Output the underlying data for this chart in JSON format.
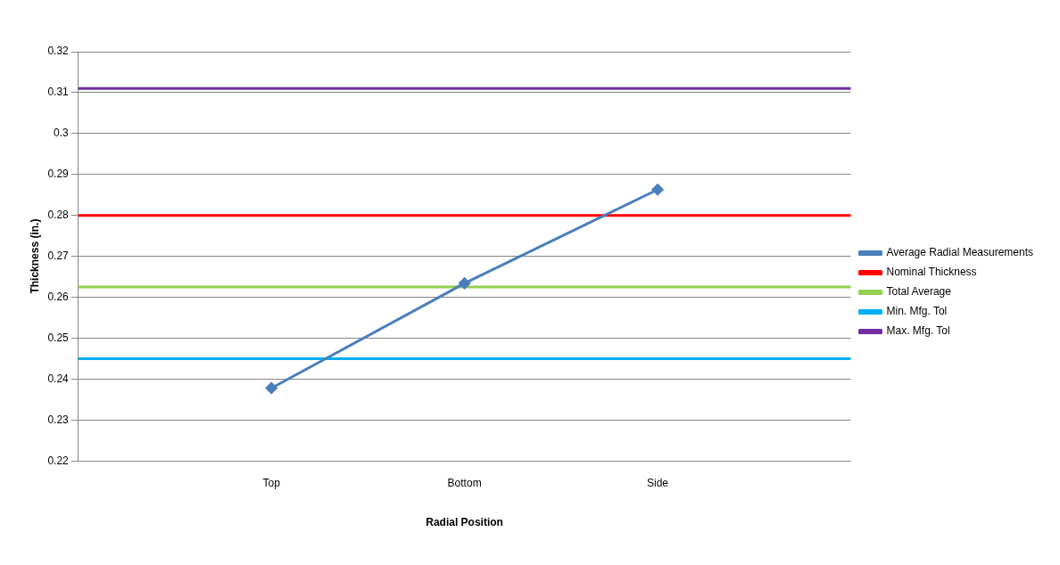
{
  "chart_data": {
    "type": "line",
    "xlabel": "Radial Position",
    "ylabel": "Thickness (in.)",
    "categories": [
      null,
      "Top",
      "Bottom",
      "Side",
      null
    ],
    "series": [
      {
        "name": "Average Radial Measurements",
        "color": "#4a7ebb",
        "values": [
          null,
          0.2378,
          0.2634,
          0.2863,
          null
        ],
        "marker": "diamond"
      },
      {
        "name": "Nominal Thickness",
        "color": "#ff0000",
        "values": [
          0.28,
          0.28,
          0.28,
          0.28,
          0.28
        ],
        "marker": "none"
      },
      {
        "name": "Total Average",
        "color": "#92d050",
        "values": [
          0.2625,
          0.2625,
          0.2625,
          0.2625,
          0.2625
        ],
        "marker": "none"
      },
      {
        "name": "Min. Mfg. Tol",
        "color": "#00b0f0",
        "values": [
          0.245,
          0.245,
          0.245,
          0.245,
          0.245
        ],
        "marker": "none"
      },
      {
        "name": "Max. Mfg. Tol",
        "color": "#7030a0",
        "values": [
          0.311,
          0.311,
          0.311,
          0.311,
          0.311
        ],
        "marker": "none"
      }
    ],
    "ylim": [
      0.22,
      0.32
    ],
    "yticks": [
      0.22,
      0.23,
      0.24,
      0.25,
      0.26,
      0.27,
      0.28,
      0.29,
      0.3,
      0.31,
      0.32
    ],
    "grid": "y",
    "legend": "right"
  }
}
